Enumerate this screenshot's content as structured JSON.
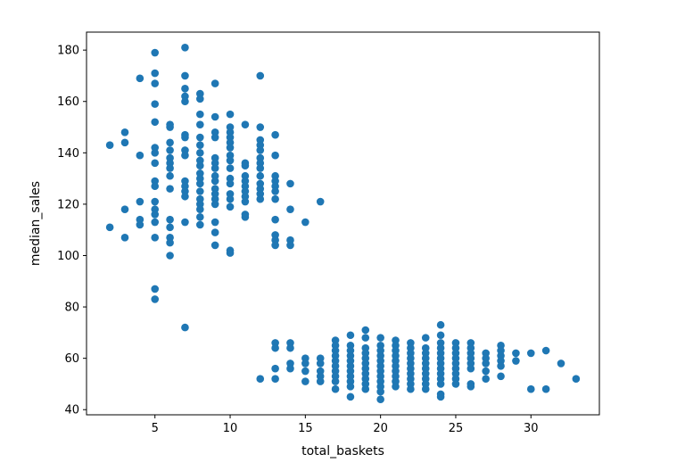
{
  "chart_data": {
    "type": "scatter",
    "title": "",
    "xlabel": "total_baskets",
    "ylabel": "median_sales",
    "xlim": [
      0.45,
      34.55
    ],
    "ylim": [
      38,
      187
    ],
    "xticks": [
      5,
      10,
      15,
      20,
      25,
      30
    ],
    "yticks": [
      40,
      60,
      80,
      100,
      120,
      140,
      160,
      180
    ],
    "grid": false,
    "legend": "none",
    "marker_color": "#1f77b4",
    "points": [
      [
        2,
        143
      ],
      [
        2,
        111
      ],
      [
        3,
        148
      ],
      [
        3,
        144
      ],
      [
        3,
        118
      ],
      [
        3,
        107
      ],
      [
        4,
        169
      ],
      [
        4,
        139
      ],
      [
        4,
        121
      ],
      [
        4,
        114
      ],
      [
        4,
        112
      ],
      [
        5,
        179
      ],
      [
        5,
        171
      ],
      [
        5,
        167
      ],
      [
        5,
        159
      ],
      [
        5,
        152
      ],
      [
        5,
        142
      ],
      [
        5,
        140
      ],
      [
        5,
        136
      ],
      [
        5,
        129
      ],
      [
        5,
        127
      ],
      [
        5,
        121
      ],
      [
        5,
        118
      ],
      [
        5,
        116
      ],
      [
        5,
        113
      ],
      [
        5,
        107
      ],
      [
        5,
        87
      ],
      [
        5,
        83
      ],
      [
        6,
        151
      ],
      [
        6,
        150
      ],
      [
        6,
        144
      ],
      [
        6,
        141
      ],
      [
        6,
        138
      ],
      [
        6,
        136
      ],
      [
        6,
        134
      ],
      [
        6,
        131
      ],
      [
        6,
        126
      ],
      [
        6,
        114
      ],
      [
        6,
        111
      ],
      [
        6,
        107
      ],
      [
        6,
        105
      ],
      [
        6,
        100
      ],
      [
        7,
        181
      ],
      [
        7,
        170
      ],
      [
        7,
        165
      ],
      [
        7,
        162
      ],
      [
        7,
        160
      ],
      [
        7,
        147
      ],
      [
        7,
        146
      ],
      [
        7,
        141
      ],
      [
        7,
        139
      ],
      [
        7,
        129
      ],
      [
        7,
        127
      ],
      [
        7,
        125
      ],
      [
        7,
        123
      ],
      [
        7,
        113
      ],
      [
        7,
        72
      ],
      [
        8,
        163
      ],
      [
        8,
        161
      ],
      [
        8,
        155
      ],
      [
        8,
        151
      ],
      [
        8,
        146
      ],
      [
        8,
        143
      ],
      [
        8,
        140
      ],
      [
        8,
        137
      ],
      [
        8,
        135
      ],
      [
        8,
        132
      ],
      [
        8,
        130
      ],
      [
        8,
        128
      ],
      [
        8,
        125
      ],
      [
        8,
        122
      ],
      [
        8,
        120
      ],
      [
        8,
        118
      ],
      [
        8,
        115
      ],
      [
        8,
        112
      ],
      [
        9,
        167
      ],
      [
        9,
        154
      ],
      [
        9,
        148
      ],
      [
        9,
        146
      ],
      [
        9,
        138
      ],
      [
        9,
        136
      ],
      [
        9,
        134
      ],
      [
        9,
        131
      ],
      [
        9,
        129
      ],
      [
        9,
        126
      ],
      [
        9,
        124
      ],
      [
        9,
        122
      ],
      [
        9,
        120
      ],
      [
        9,
        113
      ],
      [
        9,
        109
      ],
      [
        9,
        104
      ],
      [
        10,
        155
      ],
      [
        10,
        150
      ],
      [
        10,
        148
      ],
      [
        10,
        146
      ],
      [
        10,
        144
      ],
      [
        10,
        142
      ],
      [
        10,
        139
      ],
      [
        10,
        137
      ],
      [
        10,
        134
      ],
      [
        10,
        130
      ],
      [
        10,
        128
      ],
      [
        10,
        124
      ],
      [
        10,
        122
      ],
      [
        10,
        119
      ],
      [
        10,
        102
      ],
      [
        10,
        101
      ],
      [
        11,
        151
      ],
      [
        11,
        136
      ],
      [
        11,
        135
      ],
      [
        11,
        131
      ],
      [
        11,
        129
      ],
      [
        11,
        127
      ],
      [
        11,
        125
      ],
      [
        11,
        123
      ],
      [
        11,
        121
      ],
      [
        11,
        116
      ],
      [
        11,
        115
      ],
      [
        12,
        170
      ],
      [
        12,
        150
      ],
      [
        12,
        145
      ],
      [
        12,
        143
      ],
      [
        12,
        141
      ],
      [
        12,
        138
      ],
      [
        12,
        136
      ],
      [
        12,
        134
      ],
      [
        12,
        131
      ],
      [
        12,
        128
      ],
      [
        12,
        126
      ],
      [
        12,
        124
      ],
      [
        12,
        122
      ],
      [
        13,
        147
      ],
      [
        13,
        139
      ],
      [
        13,
        131
      ],
      [
        13,
        129
      ],
      [
        13,
        127
      ],
      [
        13,
        125
      ],
      [
        13,
        122
      ],
      [
        13,
        114
      ],
      [
        13,
        108
      ],
      [
        13,
        106
      ],
      [
        13,
        104
      ],
      [
        14,
        128
      ],
      [
        14,
        118
      ],
      [
        14,
        106
      ],
      [
        14,
        104
      ],
      [
        15,
        113
      ],
      [
        16,
        121
      ],
      [
        12,
        52
      ],
      [
        13,
        66
      ],
      [
        13,
        64
      ],
      [
        13,
        56
      ],
      [
        13,
        52
      ],
      [
        14,
        66
      ],
      [
        14,
        64
      ],
      [
        14,
        58
      ],
      [
        14,
        56
      ],
      [
        15,
        60
      ],
      [
        15,
        58
      ],
      [
        15,
        55
      ],
      [
        15,
        51
      ],
      [
        16,
        60
      ],
      [
        16,
        58
      ],
      [
        16,
        55
      ],
      [
        16,
        53
      ],
      [
        16,
        51
      ],
      [
        17,
        67
      ],
      [
        17,
        65
      ],
      [
        17,
        63
      ],
      [
        17,
        61
      ],
      [
        17,
        59
      ],
      [
        17,
        57
      ],
      [
        17,
        55
      ],
      [
        17,
        53
      ],
      [
        17,
        51
      ],
      [
        17,
        48
      ],
      [
        18,
        69
      ],
      [
        18,
        65
      ],
      [
        18,
        63
      ],
      [
        18,
        61
      ],
      [
        18,
        59
      ],
      [
        18,
        57
      ],
      [
        18,
        55
      ],
      [
        18,
        53
      ],
      [
        18,
        51
      ],
      [
        18,
        49
      ],
      [
        18,
        45
      ],
      [
        19,
        71
      ],
      [
        19,
        68
      ],
      [
        19,
        64
      ],
      [
        19,
        62
      ],
      [
        19,
        60
      ],
      [
        19,
        58
      ],
      [
        19,
        56
      ],
      [
        19,
        54
      ],
      [
        19,
        52
      ],
      [
        19,
        50
      ],
      [
        19,
        48
      ],
      [
        20,
        68
      ],
      [
        20,
        65
      ],
      [
        20,
        63
      ],
      [
        20,
        61
      ],
      [
        20,
        59
      ],
      [
        20,
        57
      ],
      [
        20,
        55
      ],
      [
        20,
        53
      ],
      [
        20,
        51
      ],
      [
        20,
        49
      ],
      [
        20,
        47
      ],
      [
        20,
        44
      ],
      [
        21,
        67
      ],
      [
        21,
        65
      ],
      [
        21,
        63
      ],
      [
        21,
        61
      ],
      [
        21,
        59
      ],
      [
        21,
        57
      ],
      [
        21,
        55
      ],
      [
        21,
        53
      ],
      [
        21,
        51
      ],
      [
        21,
        49
      ],
      [
        22,
        66
      ],
      [
        22,
        64
      ],
      [
        22,
        62
      ],
      [
        22,
        60
      ],
      [
        22,
        58
      ],
      [
        22,
        56
      ],
      [
        22,
        54
      ],
      [
        22,
        52
      ],
      [
        22,
        50
      ],
      [
        22,
        48
      ],
      [
        23,
        68
      ],
      [
        23,
        64
      ],
      [
        23,
        62
      ],
      [
        23,
        60
      ],
      [
        23,
        58
      ],
      [
        23,
        56
      ],
      [
        23,
        54
      ],
      [
        23,
        52
      ],
      [
        23,
        50
      ],
      [
        23,
        48
      ],
      [
        24,
        73
      ],
      [
        24,
        69
      ],
      [
        24,
        66
      ],
      [
        24,
        64
      ],
      [
        24,
        62
      ],
      [
        24,
        60
      ],
      [
        24,
        58
      ],
      [
        24,
        56
      ],
      [
        24,
        54
      ],
      [
        24,
        52
      ],
      [
        24,
        50
      ],
      [
        24,
        46
      ],
      [
        24,
        45
      ],
      [
        25,
        66
      ],
      [
        25,
        64
      ],
      [
        25,
        62
      ],
      [
        25,
        60
      ],
      [
        25,
        58
      ],
      [
        25,
        56
      ],
      [
        25,
        54
      ],
      [
        25,
        52
      ],
      [
        25,
        50
      ],
      [
        26,
        66
      ],
      [
        26,
        64
      ],
      [
        26,
        62
      ],
      [
        26,
        60
      ],
      [
        26,
        58
      ],
      [
        26,
        56
      ],
      [
        26,
        50
      ],
      [
        26,
        49
      ],
      [
        27,
        62
      ],
      [
        27,
        60
      ],
      [
        27,
        58
      ],
      [
        27,
        55
      ],
      [
        27,
        52
      ],
      [
        28,
        65
      ],
      [
        28,
        63
      ],
      [
        28,
        61
      ],
      [
        28,
        59
      ],
      [
        28,
        57
      ],
      [
        28,
        53
      ],
      [
        29,
        62
      ],
      [
        29,
        59
      ],
      [
        30,
        62
      ],
      [
        30,
        48
      ],
      [
        31,
        63
      ],
      [
        31,
        48
      ],
      [
        32,
        58
      ],
      [
        33,
        52
      ]
    ]
  }
}
